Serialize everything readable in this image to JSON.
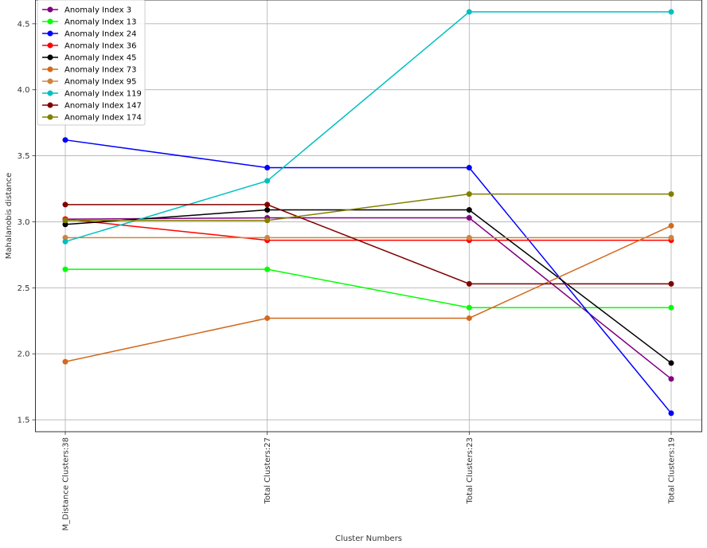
{
  "chart_data": {
    "type": "line",
    "xlabel": "Cluster Numbers",
    "ylabel": "Mahalanobis distance",
    "categories": [
      "M_Distance Clusters:38",
      "Total Clusters:27",
      "Total Clusters:23",
      "Total Clusters:19"
    ],
    "ylim": [
      1.41,
      4.68
    ],
    "yticks": [
      1.5,
      2.0,
      2.5,
      3.0,
      3.5,
      4.0,
      4.5
    ],
    "ytick_labels": [
      "1.5",
      "2.0",
      "2.5",
      "3.0",
      "3.5",
      "4.0",
      "4.5"
    ],
    "grid": true,
    "legend_position": "top-left",
    "series": [
      {
        "name": "Anomaly Index 3",
        "color": "#800080",
        "values": [
          3.02,
          3.03,
          3.03,
          1.81
        ]
      },
      {
        "name": "Anomaly Index 13",
        "color": "#00ff00",
        "values": [
          2.64,
          2.64,
          2.35,
          2.35
        ]
      },
      {
        "name": "Anomaly Index 24",
        "color": "#0000ff",
        "values": [
          3.62,
          3.41,
          3.41,
          1.55
        ]
      },
      {
        "name": "Anomaly Index 36",
        "color": "#ff0000",
        "values": [
          3.02,
          2.86,
          2.86,
          2.86
        ]
      },
      {
        "name": "Anomaly Index 45",
        "color": "#000000",
        "values": [
          2.98,
          3.09,
          3.09,
          1.93
        ]
      },
      {
        "name": "Anomaly Index 73",
        "color": "#d2691e",
        "values": [
          1.94,
          2.27,
          2.27,
          2.97
        ]
      },
      {
        "name": "Anomaly Index 95",
        "color": "#cd853f",
        "values": [
          2.88,
          2.88,
          2.88,
          2.88
        ]
      },
      {
        "name": "Anomaly Index 119",
        "color": "#00bfbf",
        "values": [
          2.85,
          3.31,
          4.59,
          4.59
        ]
      },
      {
        "name": "Anomaly Index 147",
        "color": "#800000",
        "values": [
          3.13,
          3.13,
          2.53,
          2.53
        ]
      },
      {
        "name": "Anomaly Index 174",
        "color": "#808000",
        "values": [
          3.01,
          3.01,
          3.21,
          3.21
        ]
      }
    ]
  }
}
